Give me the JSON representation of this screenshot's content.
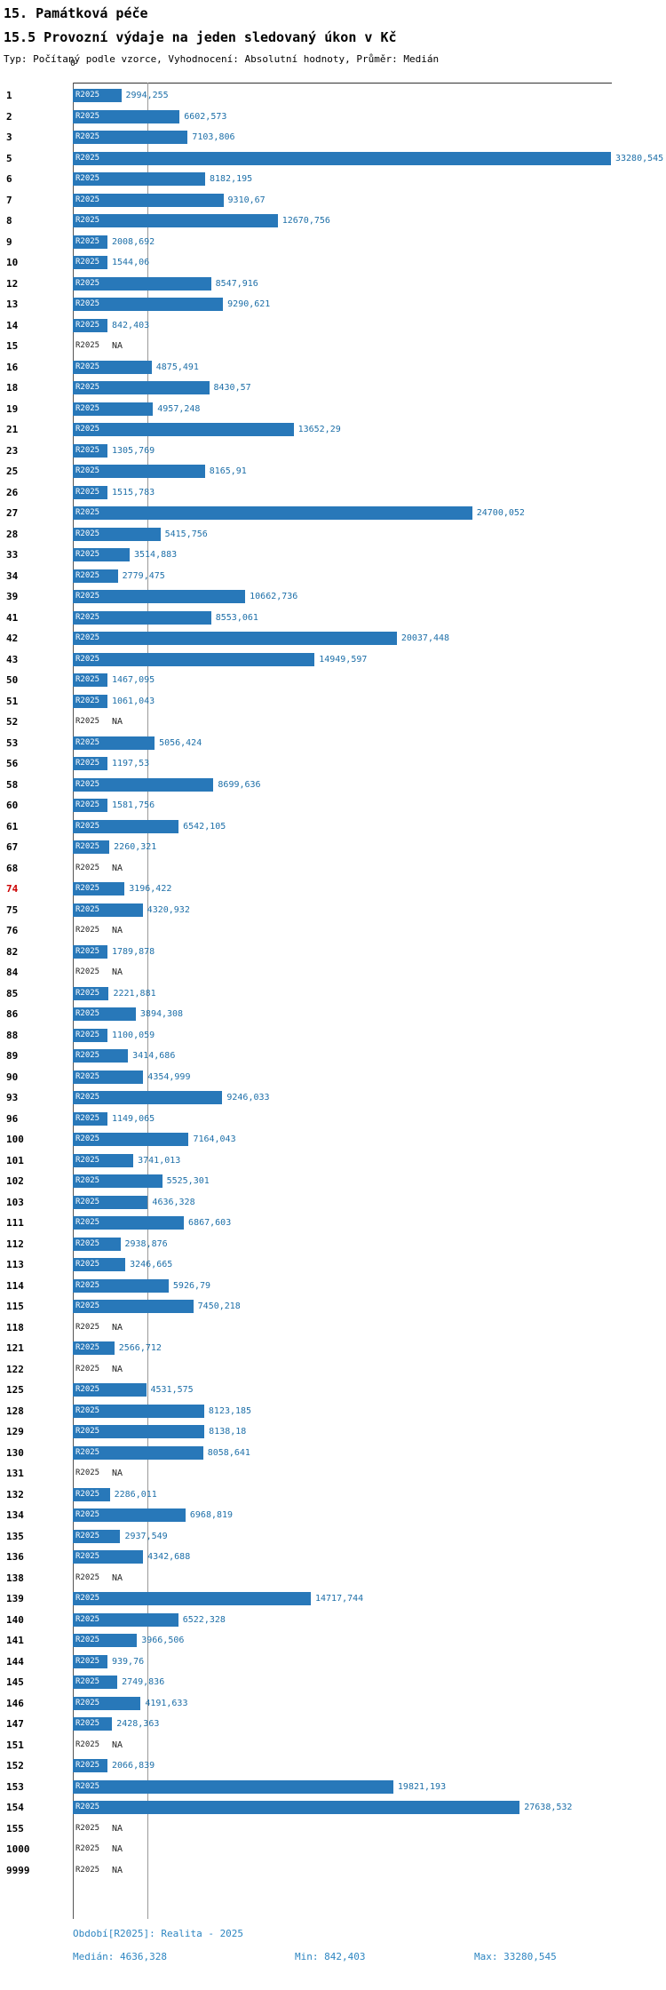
{
  "header": {
    "title": "15. Památková péče",
    "subtitle": "15.5 Provozní výdaje na jeden sledovaný úkon v Kč",
    "meta": "Typ: Počítaný podle vzorce, Vyhodnocení: Absolutní hodnoty, Průměr: Medián"
  },
  "chart_data": {
    "type": "bar",
    "orientation": "horizontal",
    "series_label": "R2025",
    "axis_zero_label": "0",
    "na_text": "NA",
    "xlim": [
      0,
      33280.545
    ],
    "median_value": 4636.328,
    "min_value": 842.403,
    "max_value": 33280.545,
    "highlighted_category": "74",
    "legend_position": "none",
    "grid": "median-line-only",
    "rows": [
      {
        "label": "1",
        "value": 2994.255,
        "display": "2994,255"
      },
      {
        "label": "2",
        "value": 6602.573,
        "display": "6602,573"
      },
      {
        "label": "3",
        "value": 7103.806,
        "display": "7103,806"
      },
      {
        "label": "5",
        "value": 33280.545,
        "display": "33280,545"
      },
      {
        "label": "6",
        "value": 8182.195,
        "display": "8182,195"
      },
      {
        "label": "7",
        "value": 9310.67,
        "display": "9310,67"
      },
      {
        "label": "8",
        "value": 12670.756,
        "display": "12670,756"
      },
      {
        "label": "9",
        "value": 2008.692,
        "display": "2008,692"
      },
      {
        "label": "10",
        "value": 1544.06,
        "display": "1544,06"
      },
      {
        "label": "12",
        "value": 8547.916,
        "display": "8547,916"
      },
      {
        "label": "13",
        "value": 9290.621,
        "display": "9290,621"
      },
      {
        "label": "14",
        "value": 842.403,
        "display": "842,403"
      },
      {
        "label": "15",
        "value": null,
        "display": "NA"
      },
      {
        "label": "16",
        "value": 4875.491,
        "display": "4875,491"
      },
      {
        "label": "18",
        "value": 8430.57,
        "display": "8430,57"
      },
      {
        "label": "19",
        "value": 4957.248,
        "display": "4957,248"
      },
      {
        "label": "21",
        "value": 13652.29,
        "display": "13652,29"
      },
      {
        "label": "23",
        "value": 1305.769,
        "display": "1305,769"
      },
      {
        "label": "25",
        "value": 8165.91,
        "display": "8165,91"
      },
      {
        "label": "26",
        "value": 1515.783,
        "display": "1515,783"
      },
      {
        "label": "27",
        "value": 24700.052,
        "display": "24700,052"
      },
      {
        "label": "28",
        "value": 5415.756,
        "display": "5415,756"
      },
      {
        "label": "33",
        "value": 3514.883,
        "display": "3514,883"
      },
      {
        "label": "34",
        "value": 2779.475,
        "display": "2779,475"
      },
      {
        "label": "39",
        "value": 10662.736,
        "display": "10662,736"
      },
      {
        "label": "41",
        "value": 8553.061,
        "display": "8553,061"
      },
      {
        "label": "42",
        "value": 20037.448,
        "display": "20037,448"
      },
      {
        "label": "43",
        "value": 14949.597,
        "display": "14949,597"
      },
      {
        "label": "50",
        "value": 1467.095,
        "display": "1467,095"
      },
      {
        "label": "51",
        "value": 1061.043,
        "display": "1061,043"
      },
      {
        "label": "52",
        "value": null,
        "display": "NA"
      },
      {
        "label": "53",
        "value": 5056.424,
        "display": "5056,424"
      },
      {
        "label": "56",
        "value": 1197.53,
        "display": "1197,53"
      },
      {
        "label": "58",
        "value": 8699.636,
        "display": "8699,636"
      },
      {
        "label": "60",
        "value": 1581.756,
        "display": "1581,756"
      },
      {
        "label": "61",
        "value": 6542.105,
        "display": "6542,105"
      },
      {
        "label": "67",
        "value": 2260.321,
        "display": "2260,321"
      },
      {
        "label": "68",
        "value": null,
        "display": "NA"
      },
      {
        "label": "74",
        "value": 3196.422,
        "display": "3196,422"
      },
      {
        "label": "75",
        "value": 4320.932,
        "display": "4320,932"
      },
      {
        "label": "76",
        "value": null,
        "display": "NA"
      },
      {
        "label": "82",
        "value": 1789.878,
        "display": "1789,878"
      },
      {
        "label": "84",
        "value": null,
        "display": "NA"
      },
      {
        "label": "85",
        "value": 2221.881,
        "display": "2221,881"
      },
      {
        "label": "86",
        "value": 3894.308,
        "display": "3894,308"
      },
      {
        "label": "88",
        "value": 1100.059,
        "display": "1100,059"
      },
      {
        "label": "89",
        "value": 3414.686,
        "display": "3414,686"
      },
      {
        "label": "90",
        "value": 4354.999,
        "display": "4354,999"
      },
      {
        "label": "93",
        "value": 9246.033,
        "display": "9246,033"
      },
      {
        "label": "96",
        "value": 1149.065,
        "display": "1149,065"
      },
      {
        "label": "100",
        "value": 7164.043,
        "display": "7164,043"
      },
      {
        "label": "101",
        "value": 3741.013,
        "display": "3741,013"
      },
      {
        "label": "102",
        "value": 5525.301,
        "display": "5525,301"
      },
      {
        "label": "103",
        "value": 4636.328,
        "display": "4636,328"
      },
      {
        "label": "111",
        "value": 6867.603,
        "display": "6867,603"
      },
      {
        "label": "112",
        "value": 2938.876,
        "display": "2938,876"
      },
      {
        "label": "113",
        "value": 3246.665,
        "display": "3246,665"
      },
      {
        "label": "114",
        "value": 5926.79,
        "display": "5926,79"
      },
      {
        "label": "115",
        "value": 7450.218,
        "display": "7450,218"
      },
      {
        "label": "118",
        "value": null,
        "display": "NA"
      },
      {
        "label": "121",
        "value": 2566.712,
        "display": "2566,712"
      },
      {
        "label": "122",
        "value": null,
        "display": "NA"
      },
      {
        "label": "125",
        "value": 4531.575,
        "display": "4531,575"
      },
      {
        "label": "128",
        "value": 8123.185,
        "display": "8123,185"
      },
      {
        "label": "129",
        "value": 8138.18,
        "display": "8138,18"
      },
      {
        "label": "130",
        "value": 8058.641,
        "display": "8058,641"
      },
      {
        "label": "131",
        "value": null,
        "display": "NA"
      },
      {
        "label": "132",
        "value": 2286.011,
        "display": "2286,011"
      },
      {
        "label": "134",
        "value": 6968.819,
        "display": "6968,819"
      },
      {
        "label": "135",
        "value": 2937.549,
        "display": "2937,549"
      },
      {
        "label": "136",
        "value": 4342.688,
        "display": "4342,688"
      },
      {
        "label": "138",
        "value": null,
        "display": "NA"
      },
      {
        "label": "139",
        "value": 14717.744,
        "display": "14717,744"
      },
      {
        "label": "140",
        "value": 6522.328,
        "display": "6522,328"
      },
      {
        "label": "141",
        "value": 3966.506,
        "display": "3966,506"
      },
      {
        "label": "144",
        "value": 939.76,
        "display": "939,76"
      },
      {
        "label": "145",
        "value": 2749.836,
        "display": "2749,836"
      },
      {
        "label": "146",
        "value": 4191.633,
        "display": "4191,633"
      },
      {
        "label": "147",
        "value": 2428.363,
        "display": "2428,363"
      },
      {
        "label": "151",
        "value": null,
        "display": "NA"
      },
      {
        "label": "152",
        "value": 2066.839,
        "display": "2066,839"
      },
      {
        "label": "153",
        "value": 19821.193,
        "display": "19821,193"
      },
      {
        "label": "154",
        "value": 27638.532,
        "display": "27638,532"
      },
      {
        "label": "155",
        "value": null,
        "display": "NA"
      },
      {
        "label": "1000",
        "value": null,
        "display": "NA"
      },
      {
        "label": "9999",
        "value": null,
        "display": "NA"
      }
    ]
  },
  "footer": {
    "period": "Období[R2025]: Realita - 2025",
    "median": "Medián: 4636,328",
    "min": "Min: 842,403",
    "max": "Max: 33280,545"
  },
  "colors": {
    "bar": "#2878b9",
    "value_text": "#1d6fa8",
    "highlight_label": "#cc0000",
    "footer_text": "#2e86c1",
    "median_line": "#999999"
  }
}
